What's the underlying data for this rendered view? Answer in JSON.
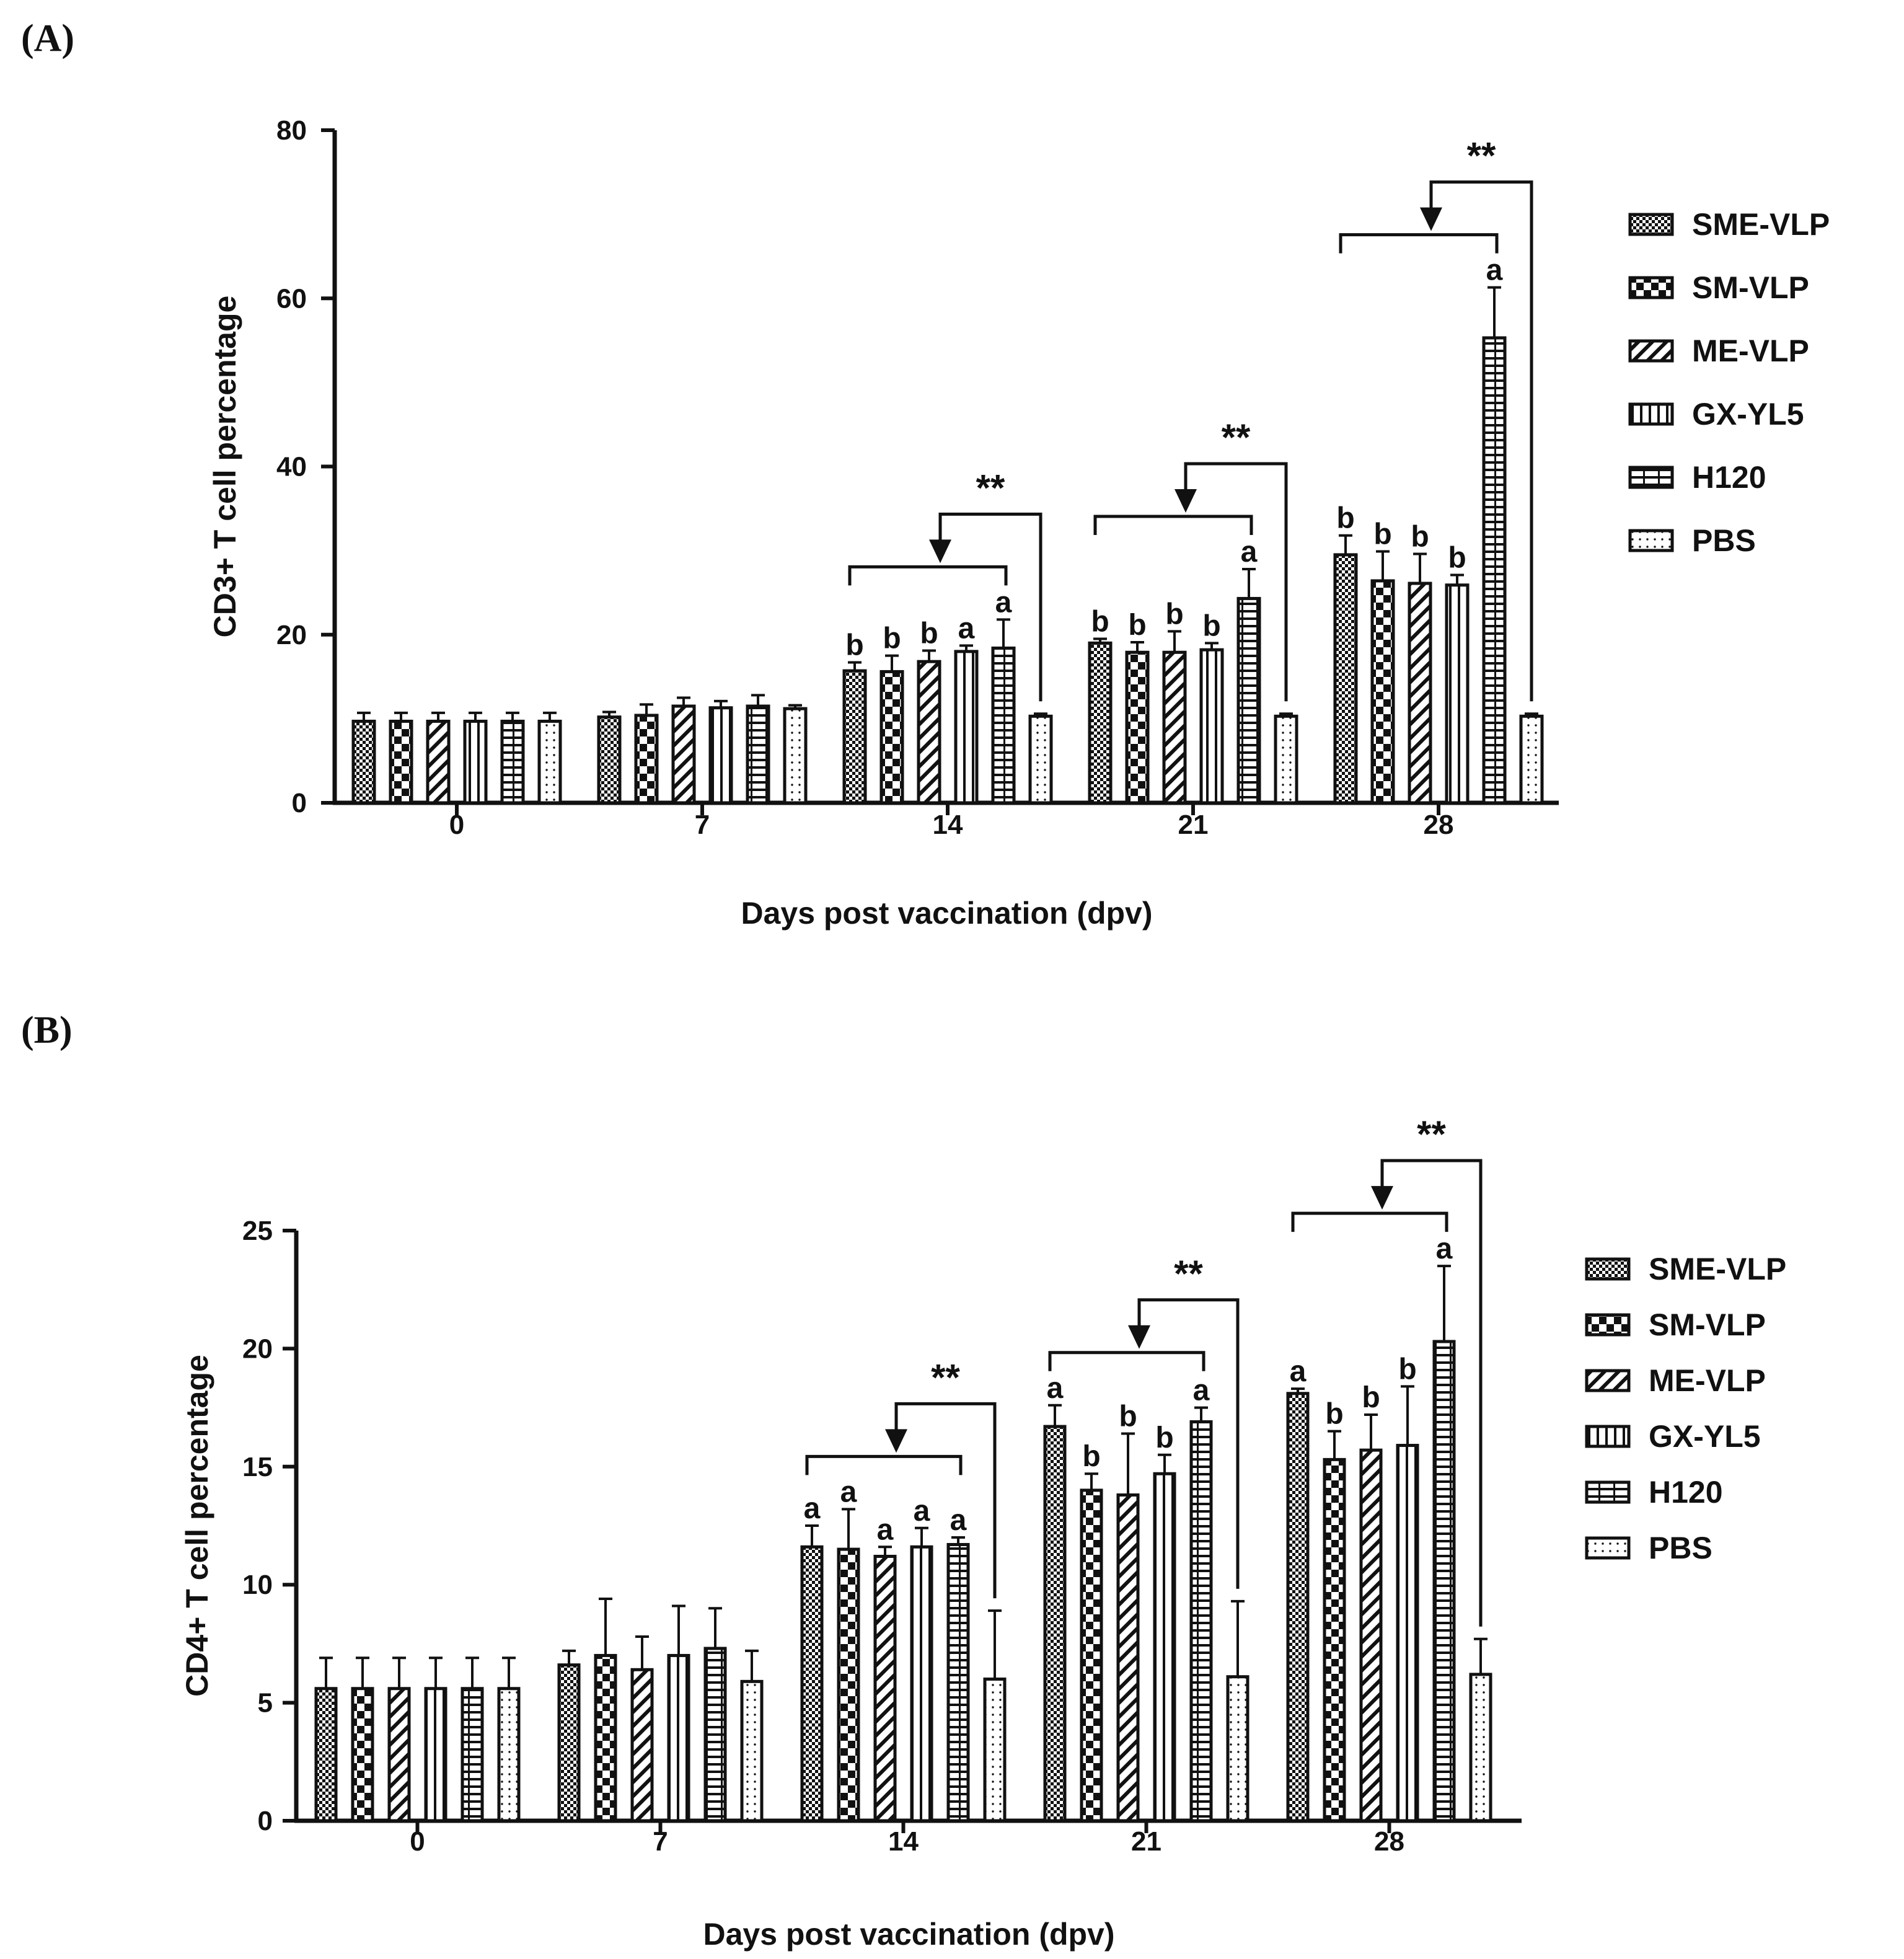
{
  "legend_labels": [
    "SME-VLP",
    "SM-VLP",
    "ME-VLP",
    "GX-YL5",
    "H120",
    "PBS"
  ],
  "chart_data": [
    {
      "panel_label": "(A)",
      "type": "bar",
      "ylabel": "CD3+ T cell percentage",
      "xlabel": "Days post vaccination (dpv)",
      "ylim": [
        0,
        80
      ],
      "yticks": [
        0,
        20,
        40,
        60,
        80
      ],
      "categories": [
        "0",
        "7",
        "14",
        "21",
        "28"
      ],
      "series": [
        {
          "name": "SME-VLP",
          "values": [
            9.7,
            10.2,
            15.7,
            19.0,
            29.5
          ],
          "errors": [
            1.0,
            0.6,
            1.0,
            0.5,
            2.3
          ]
        },
        {
          "name": "SM-VLP",
          "values": [
            9.7,
            10.4,
            15.6,
            17.9,
            26.4
          ],
          "errors": [
            1.0,
            1.3,
            1.9,
            1.2,
            3.5
          ]
        },
        {
          "name": "ME-VLP",
          "values": [
            9.7,
            11.5,
            16.8,
            17.9,
            26.1
          ],
          "errors": [
            1.0,
            1.0,
            1.3,
            2.5,
            3.5
          ]
        },
        {
          "name": "GX-YL5",
          "values": [
            9.7,
            11.3,
            18.0,
            18.2,
            25.9
          ],
          "errors": [
            1.0,
            0.8,
            0.7,
            0.8,
            1.2
          ]
        },
        {
          "name": "H120",
          "values": [
            9.7,
            11.5,
            18.4,
            24.3,
            55.3
          ],
          "errors": [
            1.0,
            1.3,
            3.4,
            3.5,
            6.0
          ]
        },
        {
          "name": "PBS",
          "values": [
            9.7,
            11.2,
            10.3,
            10.3,
            10.3
          ],
          "errors": [
            1.0,
            0.4,
            0.3,
            0.3,
            0.3
          ]
        }
      ],
      "letters": [
        [
          "",
          "",
          "",
          "",
          "",
          ""
        ],
        [
          "",
          "",
          "",
          "",
          "",
          ""
        ],
        [
          "b",
          "b",
          "b",
          "a",
          "a",
          ""
        ],
        [
          "b",
          "b",
          "b",
          "b",
          "a",
          ""
        ],
        [
          "b",
          "b",
          "b",
          "b",
          "a",
          ""
        ]
      ],
      "significance": [
        {
          "category": "14",
          "label": "**"
        },
        {
          "category": "21",
          "label": "**"
        },
        {
          "category": "28",
          "label": "**"
        }
      ]
    },
    {
      "panel_label": "(B)",
      "type": "bar",
      "ylabel": "CD4+ T cell percentage",
      "xlabel": "Days post vaccination (dpv)",
      "ylim": [
        0,
        25
      ],
      "yticks": [
        0,
        5,
        10,
        15,
        20,
        25
      ],
      "categories": [
        "0",
        "7",
        "14",
        "21",
        "28"
      ],
      "series": [
        {
          "name": "SME-VLP",
          "values": [
            5.6,
            6.6,
            11.6,
            16.7,
            18.1
          ],
          "errors": [
            1.3,
            0.6,
            0.9,
            0.9,
            0.2
          ]
        },
        {
          "name": "SM-VLP",
          "values": [
            5.6,
            7.0,
            11.5,
            14.0,
            15.3
          ],
          "errors": [
            1.3,
            2.4,
            1.7,
            0.7,
            1.2
          ]
        },
        {
          "name": "ME-VLP",
          "values": [
            5.6,
            6.4,
            11.2,
            13.8,
            15.7
          ],
          "errors": [
            1.3,
            1.4,
            0.4,
            2.6,
            1.5
          ]
        },
        {
          "name": "GX-YL5",
          "values": [
            5.6,
            7.0,
            11.6,
            14.7,
            15.9
          ],
          "errors": [
            1.3,
            2.1,
            0.8,
            0.8,
            2.5
          ]
        },
        {
          "name": "H120",
          "values": [
            5.6,
            7.3,
            11.7,
            16.9,
            20.3
          ],
          "errors": [
            1.3,
            1.7,
            0.3,
            0.6,
            3.2
          ]
        },
        {
          "name": "PBS",
          "values": [
            5.6,
            5.9,
            6.0,
            6.1,
            6.2
          ],
          "errors": [
            1.3,
            1.3,
            2.9,
            3.2,
            1.5
          ]
        }
      ],
      "letters": [
        [
          "",
          "",
          "",
          "",
          "",
          ""
        ],
        [
          "",
          "",
          "",
          "",
          "",
          ""
        ],
        [
          "a",
          "a",
          "a",
          "a",
          "a",
          ""
        ],
        [
          "a",
          "b",
          "b",
          "b",
          "a",
          ""
        ],
        [
          "a",
          "b",
          "b",
          "b",
          "a",
          ""
        ]
      ],
      "significance": [
        {
          "category": "14",
          "label": "**"
        },
        {
          "category": "21",
          "label": "**"
        },
        {
          "category": "28",
          "label": "**"
        }
      ]
    }
  ]
}
